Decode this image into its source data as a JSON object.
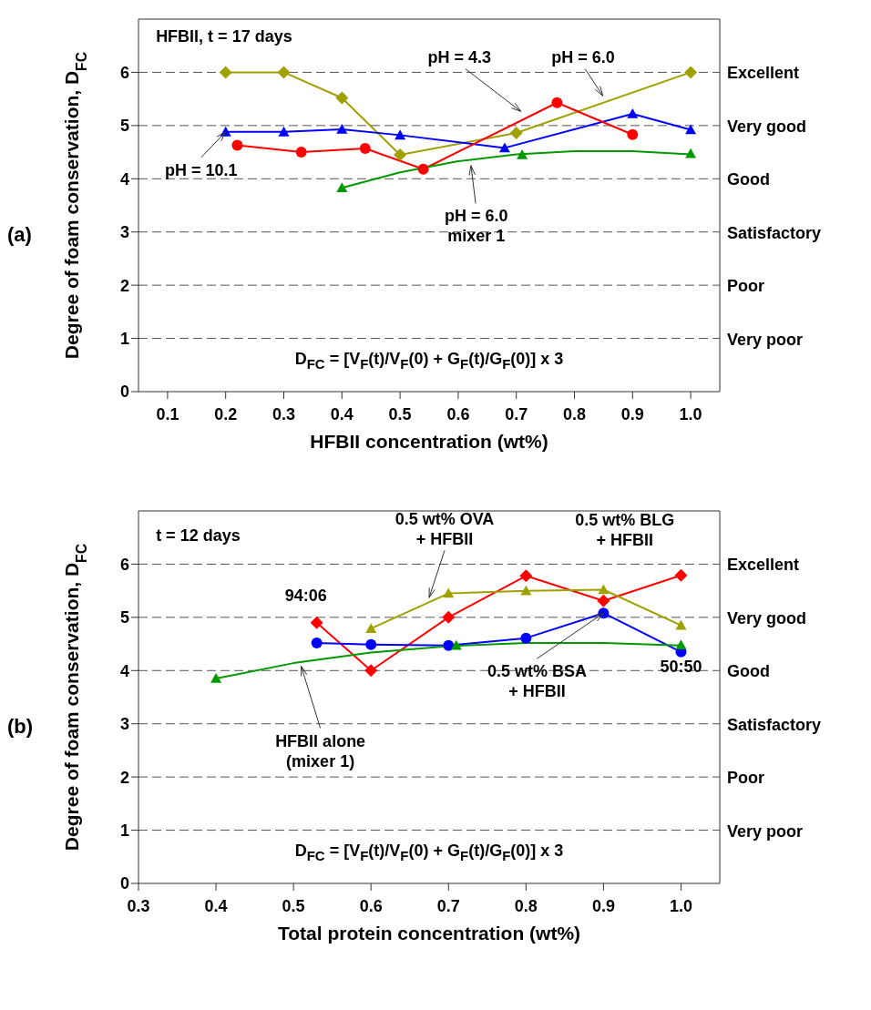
{
  "chart_data": [
    {
      "type": "line",
      "title": "(a)",
      "xlabel": "HFBII concentration (wt%)",
      "ylabel": "Degree of foam conservation, D$_{FC}$",
      "xlim": [
        0.05,
        1.05
      ],
      "xticks": [
        0.1,
        0.2,
        0.3,
        0.4,
        0.5,
        0.6,
        0.7,
        0.8,
        0.9,
        {
          "value": 1,
          "label": "1.0"
        }
      ],
      "ylim": [
        0,
        7
      ],
      "yticks": [
        0,
        1,
        2,
        3,
        4,
        5,
        6
      ],
      "ref_lines": [
        {
          "axis": "y",
          "value": 1,
          "label": "Very poor",
          "line_style": "dashed"
        },
        {
          "axis": "y",
          "value": 2,
          "label": "Poor",
          "line_style": "dashed"
        },
        {
          "axis": "y",
          "value": 3,
          "label": "Satisfactory",
          "line_style": "dashed"
        },
        {
          "axis": "y",
          "value": 4,
          "label": "Good",
          "line_style": "dashed"
        },
        {
          "axis": "y",
          "value": 5,
          "label": "Very good",
          "line_style": "dashed"
        },
        {
          "axis": "y",
          "value": 6,
          "label": "Excellent",
          "line_style": "dashed"
        }
      ],
      "series": [
        {
          "type": "line",
          "color": "#a0a000",
          "marker": "diamond",
          "x": [
            0.2,
            0.3,
            0.4,
            0.5,
            0.7,
            1.0
          ],
          "values": [
            6.0,
            6.0,
            5.52,
            4.45,
            4.86,
            6.0
          ]
        },
        {
          "type": "line",
          "color": "#0000ff",
          "marker": "triangle",
          "x": [
            0.2,
            0.3,
            0.4,
            0.5,
            0.68,
            0.9,
            1.0
          ],
          "values": [
            4.88,
            4.88,
            4.93,
            4.82,
            4.58,
            5.22,
            4.92
          ]
        },
        {
          "type": "line",
          "color": "#ff0000",
          "marker": "circle",
          "x": [
            0.22,
            0.33,
            0.44,
            0.54,
            0.77,
            0.9
          ],
          "values": [
            4.63,
            4.5,
            4.57,
            4.18,
            5.43,
            4.83
          ]
        },
        {
          "type": "scatter",
          "color": "#009900",
          "marker": "triangle",
          "x": [
            0.4,
            0.71,
            1.0
          ],
          "values": [
            3.83,
            4.45,
            4.47
          ]
        },
        {
          "type": "line",
          "color": "#009900",
          "marker": "none",
          "x": [
            0.4,
            0.5,
            0.6,
            0.7,
            0.8,
            0.9,
            1.0
          ],
          "values": [
            3.83,
            4.12,
            4.33,
            4.46,
            4.52,
            4.52,
            4.46
          ]
        }
      ],
      "annotations": [
        "HFBII, t = 17 days",
        "pH = 4.3",
        "pH = 6.0",
        {
          "text": "pH = 10.1",
          "x": 0.2,
          "y": 4.88
        },
        "pH = 6.0\nmixer 1",
        "D$_{FC}$ = [V$_{F}$(t)/V$_{F}$(0) + G$_{F}$(t)/G$_{F}$(0)] x 3"
      ]
    },
    {
      "type": "line",
      "title": "(b)",
      "xlabel": "Total protein concentration (wt%)",
      "ylabel": "Degree of foam conservation, D$_{FC}$",
      "xlim": [
        0.3,
        1.05
      ],
      "xticks": [
        0.3,
        0.4,
        0.5,
        0.6,
        0.7,
        0.8,
        0.9,
        {
          "value": 1,
          "label": "1.0"
        }
      ],
      "ylim": [
        0,
        7
      ],
      "yticks": [
        0,
        1,
        2,
        3,
        4,
        5,
        6
      ],
      "ref_lines": [
        {
          "axis": "y",
          "value": 1,
          "label": "Very poor",
          "line_style": "dashed"
        },
        {
          "axis": "y",
          "value": 2,
          "label": "Poor",
          "line_style": "dashed"
        },
        {
          "axis": "y",
          "value": 3,
          "label": "Satisfactory",
          "line_style": "dashed"
        },
        {
          "axis": "y",
          "value": 4,
          "label": "Good",
          "line_style": "dashed"
        },
        {
          "axis": "y",
          "value": 5,
          "label": "Very good",
          "line_style": "dashed"
        },
        {
          "axis": "y",
          "value": 6,
          "label": "Excellent",
          "line_style": "dashed"
        }
      ],
      "series": [
        {
          "type": "line",
          "color": "#ff0000",
          "marker": "diamond",
          "x": [
            0.53,
            0.6,
            0.7,
            0.8,
            0.9,
            1.0
          ],
          "values": [
            4.9,
            4.0,
            5.0,
            5.78,
            5.31,
            5.79
          ]
        },
        {
          "type": "line",
          "color": "#a0a000",
          "marker": "triangle",
          "x": [
            0.6,
            0.7,
            0.8,
            0.9,
            1.0
          ],
          "values": [
            4.79,
            5.45,
            5.5,
            5.52,
            4.85
          ]
        },
        {
          "type": "line",
          "color": "#0000ff",
          "marker": "circle",
          "x": [
            0.53,
            0.6,
            0.7,
            0.8,
            0.9,
            1.0
          ],
          "values": [
            4.52,
            4.49,
            4.47,
            4.61,
            5.08,
            4.35
          ]
        },
        {
          "type": "scatter",
          "color": "#009900",
          "marker": "triangle",
          "x": [
            0.4,
            0.71,
            1.0
          ],
          "values": [
            3.85,
            4.47,
            4.48
          ]
        },
        {
          "type": "line",
          "color": "#009900",
          "marker": "none",
          "x": [
            0.4,
            0.5,
            0.6,
            0.7,
            0.8,
            0.9,
            1.0
          ],
          "values": [
            3.85,
            4.14,
            4.34,
            4.46,
            4.52,
            4.52,
            4.47
          ]
        }
      ],
      "annotations": [
        "t = 12 days",
        {
          "text": "0.5 wt% OVA\n+ HFBII",
          "x": 0.675,
          "y": 5.37
        },
        {
          "text": "0.5 wt% BLG\n+ HFBII",
          "x": 0.81,
          "y": 5.84
        },
        {
          "text": "0.5 wt% BSA\n+ HFBII",
          "x": 0.9,
          "y": 5.08
        },
        {
          "text": "HFBII alone\n(mixer 1)",
          "x": 0.51,
          "y": 4.08
        },
        {
          "text": "94:06",
          "x": 0.53,
          "y": 4.9
        },
        {
          "text": "50:50",
          "x": 1.0,
          "y": 4.35
        },
        "D$_{FC}$ = [V$_{F}$(t)/V$_{F}$(0) + G$_{F}$(t)/G$_{F}$(0)] x 3"
      ]
    }
  ]
}
